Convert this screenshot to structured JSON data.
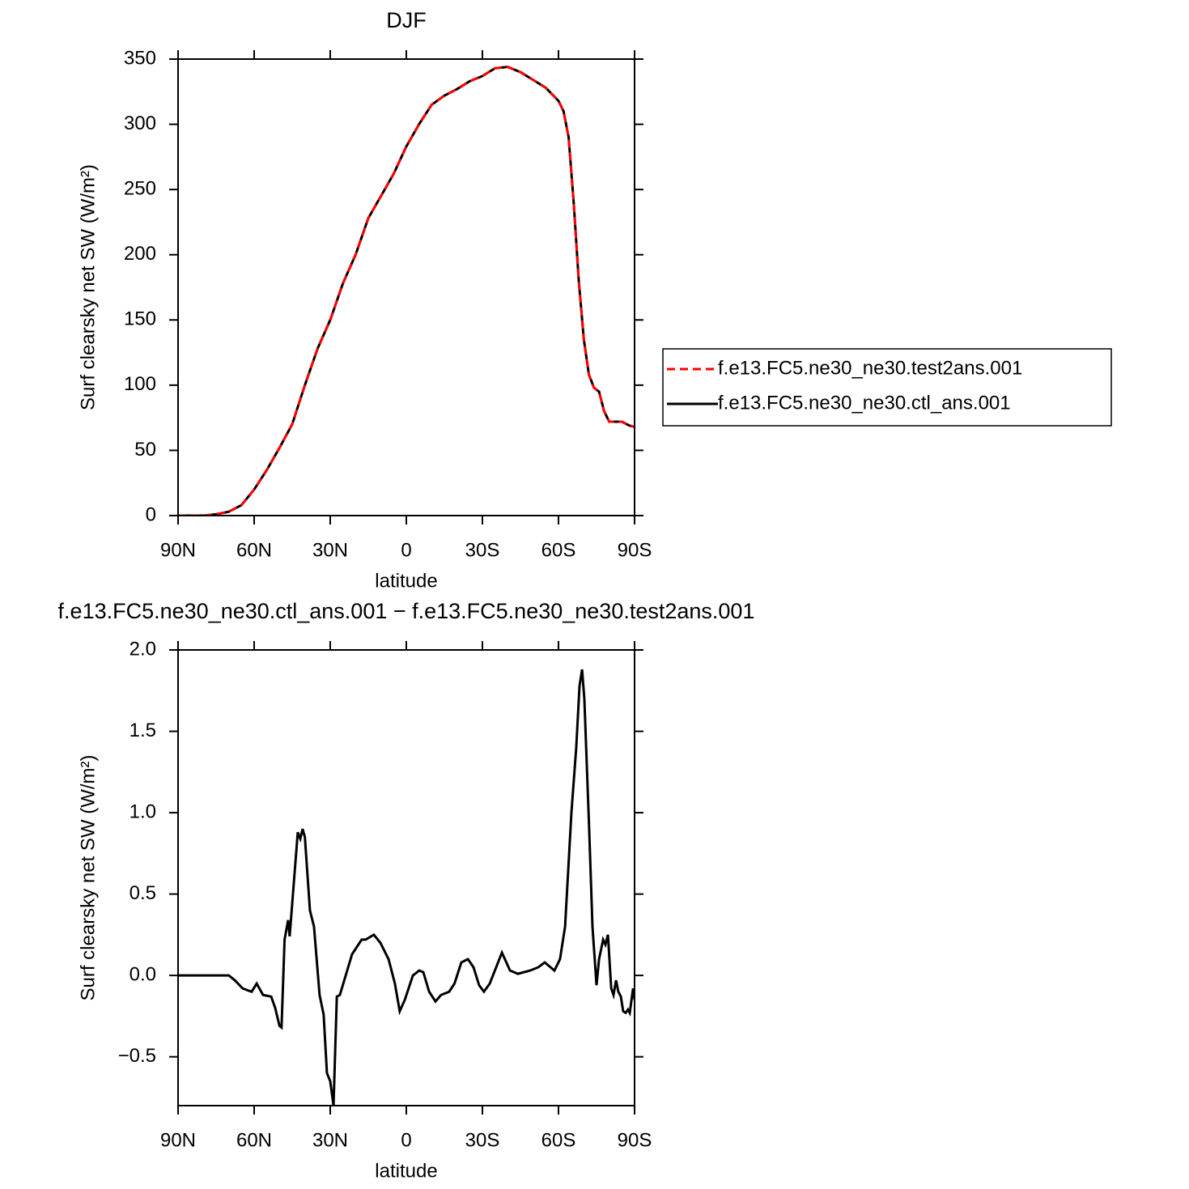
{
  "chart_data": [
    {
      "type": "line",
      "title": "DJF",
      "xlabel": "latitude",
      "ylabel": "Surf clearsky net SW (W/m²)",
      "xlim": [
        90,
        -90
      ],
      "ylim": [
        0,
        350
      ],
      "xticks": [
        {
          "value": 90,
          "label": "90N"
        },
        {
          "value": 60,
          "label": "60N"
        },
        {
          "value": 30,
          "label": "30N"
        },
        0,
        {
          "value": -30,
          "label": "30S"
        },
        {
          "value": -60,
          "label": "60S"
        },
        {
          "value": -90,
          "label": "90S"
        }
      ],
      "yticks": [
        0,
        50,
        100,
        150,
        200,
        250,
        300,
        350
      ],
      "legend": "right",
      "x": [
        90,
        85,
        80,
        75,
        70,
        65,
        60,
        55,
        50,
        45,
        40,
        35,
        30,
        25,
        20,
        15,
        10,
        5,
        0,
        -5,
        -10,
        -15,
        -20,
        -25,
        -30,
        -35,
        -40,
        -45,
        -50,
        -55,
        -60,
        -62,
        -64,
        -66,
        -68,
        -70,
        -72,
        -74,
        -76,
        -78,
        -80,
        -85,
        -88,
        -90
      ],
      "series": [
        {
          "name": "f.e13.FC5.ne30_ne30.test2ans.001",
          "color": "#ff0000",
          "linestyle": "dashed",
          "values": [
            0,
            0,
            0,
            1,
            3,
            8,
            20,
            35,
            52,
            70,
            100,
            128,
            150,
            178,
            200,
            228,
            245,
            262,
            283,
            300,
            315,
            322,
            327,
            333,
            337,
            343,
            344,
            340,
            334,
            328,
            318,
            310,
            290,
            240,
            180,
            135,
            108,
            98,
            95,
            80,
            72,
            72,
            69,
            68
          ]
        },
        {
          "name": "f.e13.FC5.ne30_ne30.ctl_ans.001",
          "color": "#000000",
          "linestyle": "solid",
          "values": [
            0,
            0,
            0,
            1,
            3,
            8,
            20,
            35,
            52,
            70,
            100,
            128,
            150,
            178,
            200,
            228,
            245,
            262,
            283,
            300,
            315,
            322,
            327,
            333,
            337,
            343,
            344,
            340,
            334,
            328,
            318,
            310,
            290,
            240,
            180,
            135,
            108,
            98,
            95,
            80,
            72,
            72,
            69,
            68
          ]
        }
      ]
    },
    {
      "type": "line",
      "title": "f.e13.FC5.ne30_ne30.ctl_ans.001 − f.e13.FC5.ne30_ne30.test2ans.001",
      "xlabel": "latitude",
      "ylabel": "Surf clearsky net SW (W/m²)",
      "xlim": [
        90,
        -90
      ],
      "ylim": [
        -0.8,
        2.0
      ],
      "xticks": [
        {
          "value": 90,
          "label": "90N"
        },
        {
          "value": 60,
          "label": "60N"
        },
        {
          "value": 30,
          "label": "30N"
        },
        0,
        {
          "value": -30,
          "label": "30S"
        },
        {
          "value": -60,
          "label": "60S"
        },
        {
          "value": -90,
          "label": "90S"
        }
      ],
      "yticks": [
        {
          "value": -0.5,
          "label": "−0.5"
        },
        {
          "value": 0,
          "label": "0.0"
        },
        {
          "value": 0.5,
          "label": "0.5"
        },
        {
          "value": 1,
          "label": "1.0"
        },
        {
          "value": 1.5,
          "label": "1.5"
        },
        {
          "value": 2,
          "label": "2.0"
        }
      ],
      "x": [
        90,
        74,
        70,
        67.6,
        64.5,
        61,
        59,
        56.5,
        53.3,
        51.7,
        50,
        49.2,
        48,
        46.6,
        46,
        42.8,
        41.8,
        40.9,
        40,
        38,
        36.4,
        34.2,
        32.6,
        31.3,
        30,
        28.7,
        27.4,
        26.2,
        21.4,
        17.6,
        16,
        12.8,
        10.2,
        7,
        4.5,
        2.6,
        0.6,
        -2.6,
        -5.1,
        -6.7,
        -9,
        -11.5,
        -13.7,
        -16.9,
        -19,
        -21.7,
        -24.3,
        -26.5,
        -28.7,
        -30.6,
        -32.9,
        -37.7,
        -40.9,
        -44,
        -48.8,
        -52,
        -54.6,
        -58.4,
        -60.6,
        -62.6,
        -65.1,
        -67,
        -68.3,
        -69.3,
        -70.2,
        -72.1,
        -73.4,
        -75,
        -76,
        -77.6,
        -78.5,
        -79.5,
        -80.8,
        -81.7,
        -82.7,
        -83.6,
        -84.6,
        -85.5,
        -86.5,
        -87.4,
        -88.1,
        -89.4,
        -90
      ],
      "series": [
        {
          "color": "#000000",
          "linestyle": "solid",
          "values": [
            0,
            0,
            0,
            -0.03,
            -0.08,
            -0.1,
            -0.05,
            -0.12,
            -0.13,
            -0.2,
            -0.31,
            -0.32,
            0.22,
            0.34,
            0.24,
            0.88,
            0.84,
            0.9,
            0.85,
            0.4,
            0.3,
            -0.12,
            -0.24,
            -0.6,
            -0.65,
            -0.8,
            -0.13,
            -0.12,
            0.13,
            0.22,
            0.22,
            0.25,
            0.2,
            0.1,
            -0.05,
            -0.22,
            -0.15,
            0,
            0.03,
            0.02,
            -0.1,
            -0.16,
            -0.12,
            -0.1,
            -0.05,
            0.08,
            0.1,
            0.05,
            -0.06,
            -0.1,
            -0.05,
            0.14,
            0.03,
            0.01,
            0.03,
            0.05,
            0.08,
            0.03,
            0.1,
            0.3,
            1.0,
            1.4,
            1.78,
            1.88,
            1.7,
            0.9,
            0.3,
            -0.06,
            0.1,
            0.22,
            0.19,
            0.25,
            -0.08,
            -0.12,
            -0.03,
            -0.1,
            -0.13,
            -0.22,
            -0.23,
            -0.21,
            -0.23,
            -0.08,
            -0.15
          ]
        }
      ]
    }
  ]
}
